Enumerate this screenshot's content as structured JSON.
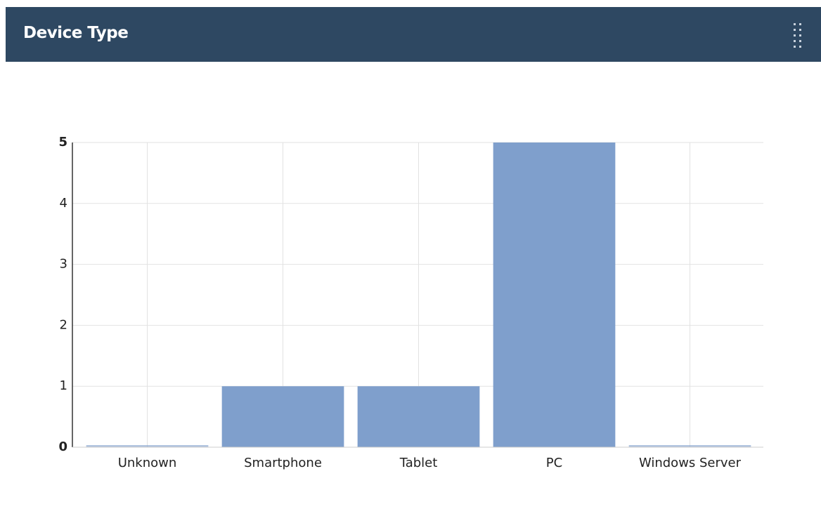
{
  "header": {
    "title": "Device Type"
  },
  "chart_data": {
    "type": "bar",
    "categories": [
      "Unknown",
      "Smartphone",
      "Tablet",
      "PC",
      "Windows Server"
    ],
    "values": [
      0,
      1,
      1,
      5,
      0
    ],
    "color": "#7f9fcc",
    "ylim": [
      0,
      5
    ],
    "yticks": [
      0,
      1,
      2,
      3,
      4,
      5
    ],
    "grid": true
  }
}
